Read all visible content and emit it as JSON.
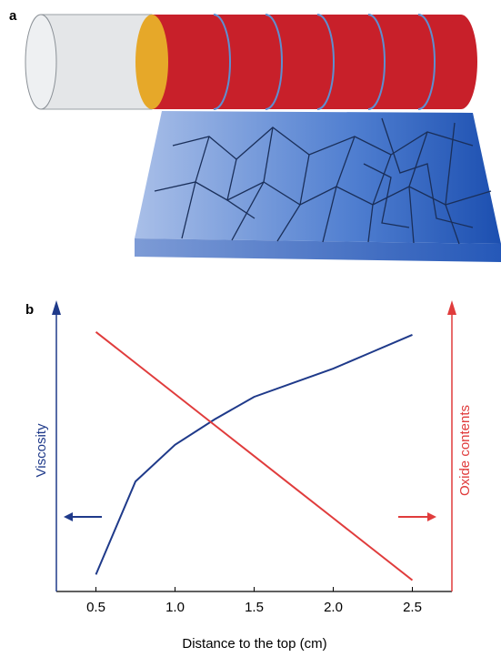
{
  "panel_a": {
    "label": "a"
  },
  "chart_data": {
    "type": "line",
    "panel_label": "b",
    "xlabel": "Distance to the top (cm)",
    "ylabel": "Viscosity",
    "y2label": "Oxide contents",
    "x": [
      0.5,
      0.75,
      1.0,
      1.25,
      1.5,
      1.75,
      2.0,
      2.25,
      2.5
    ],
    "series": [
      {
        "color": "#1f3a8a",
        "values": [
          0.06,
          0.39,
          0.52,
          0.61,
          0.69,
          0.74,
          0.79,
          0.85,
          0.91
        ]
      },
      {
        "color": "#e03c3c",
        "axis": "y2",
        "values": [
          0.92,
          0.81,
          0.7,
          0.59,
          0.48,
          0.37,
          0.26,
          0.15,
          0.04
        ]
      }
    ],
    "xlim": [
      0.25,
      2.75
    ],
    "ylim": [
      0,
      1
    ],
    "y2lim": [
      0,
      1
    ],
    "xticks": [
      0.5,
      {
        "value": 1,
        "label": "1.0"
      },
      1.5,
      {
        "value": 2,
        "label": "2.0"
      },
      2.5
    ]
  }
}
